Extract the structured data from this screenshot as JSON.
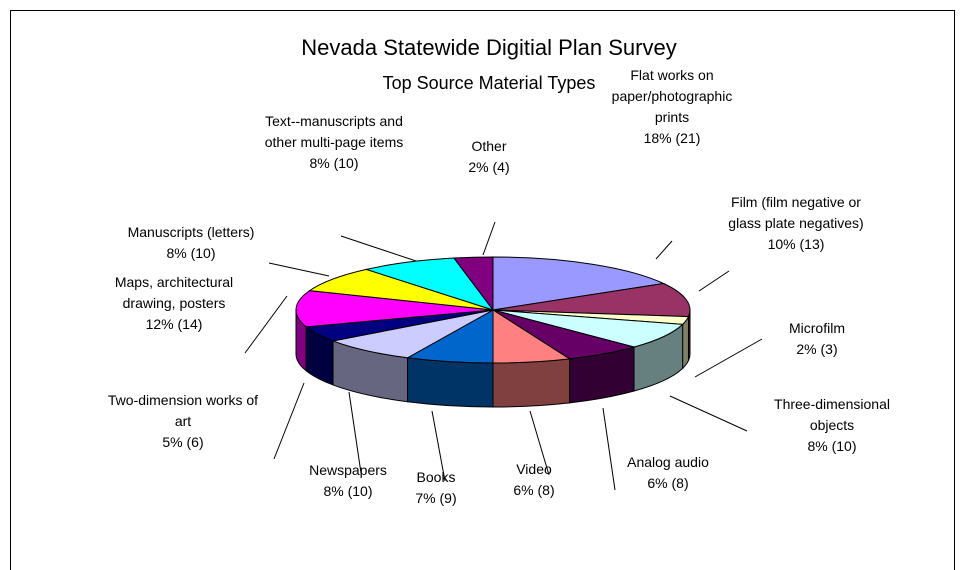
{
  "chart_data": {
    "type": "pie",
    "title": "Nevada Statewide Digitial Plan Survey",
    "subtitle": "Top Source Material Types",
    "three_d": true,
    "slices": [
      {
        "lines": [
          "Flat works on",
          "paper/photographic",
          "prints"
        ],
        "stat": "18% (21)",
        "percent": 18,
        "count": 21,
        "color": "#9999ff"
      },
      {
        "lines": [
          "Film (film negative or",
          "glass plate negatives)"
        ],
        "stat": "10% (13)",
        "percent": 10,
        "count": 13,
        "color": "#993366"
      },
      {
        "lines": [
          "Microfilm"
        ],
        "stat": "2% (3)",
        "percent": 2,
        "count": 3,
        "color": "#ffffcc"
      },
      {
        "lines": [
          "Three-dimensional",
          "objects"
        ],
        "stat": "8% (10)",
        "percent": 8,
        "count": 10,
        "color": "#ccffff"
      },
      {
        "lines": [
          "Analog audio"
        ],
        "stat": "6% (8)",
        "percent": 6,
        "count": 8,
        "color": "#660066"
      },
      {
        "lines": [
          "Video"
        ],
        "stat": "6% (8)",
        "percent": 6,
        "count": 8,
        "color": "#ff8080"
      },
      {
        "lines": [
          "Books"
        ],
        "stat": "7% (9)",
        "percent": 7,
        "count": 9,
        "color": "#0066cc"
      },
      {
        "lines": [
          "Newspapers"
        ],
        "stat": "8% (10)",
        "percent": 8,
        "count": 10,
        "color": "#ccccff"
      },
      {
        "lines": [
          "Two-dimension works of",
          "art"
        ],
        "stat": "5% (6)",
        "percent": 5,
        "count": 6,
        "color": "#000080"
      },
      {
        "lines": [
          "Maps, architectural",
          "drawing, posters"
        ],
        "stat": "12% (14)",
        "percent": 12,
        "count": 14,
        "color": "#ff00ff"
      },
      {
        "lines": [
          "Manuscripts (letters)"
        ],
        "stat": "8% (10)",
        "percent": 8,
        "count": 10,
        "color": "#ffff00"
      },
      {
        "lines": [
          "Text--manuscripts and",
          "other multi-page items"
        ],
        "stat": "8% (10)",
        "percent": 8,
        "count": 10,
        "color": "#00ffff"
      },
      {
        "lines": [
          "Other"
        ],
        "stat": "2% (4)",
        "percent": 2,
        "count": 4,
        "color": "#800080"
      }
    ]
  }
}
